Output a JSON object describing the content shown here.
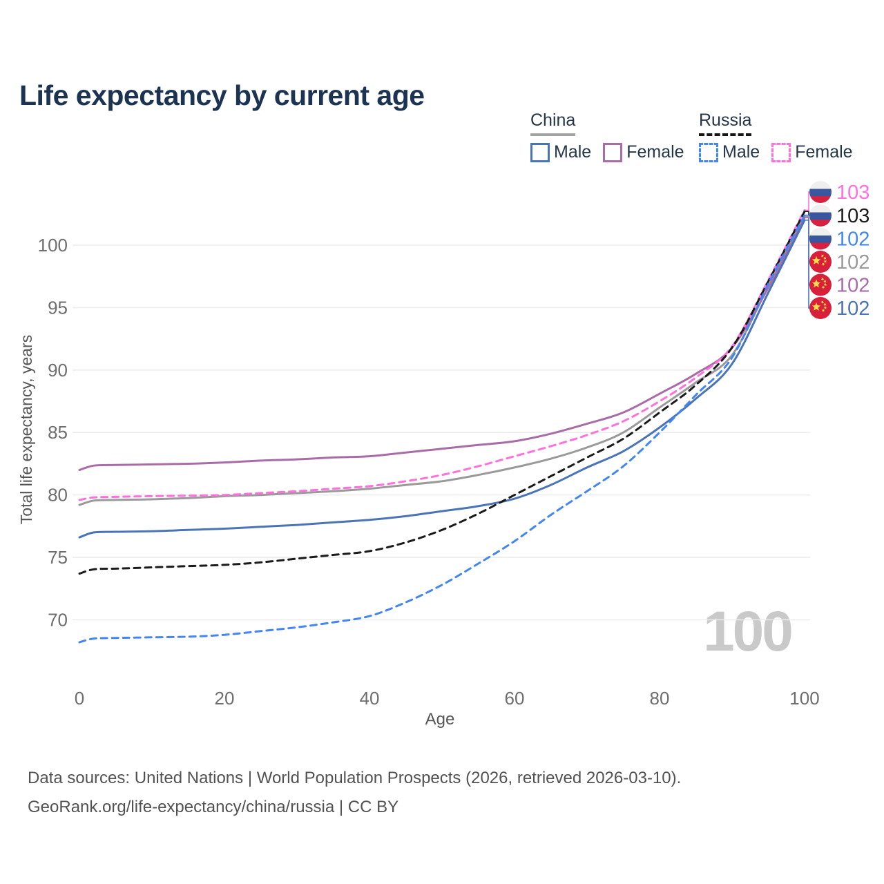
{
  "title": "Life expectancy by current age",
  "watermark": "100",
  "legend": {
    "china": {
      "label": "China",
      "line_style": "solid",
      "line_color": "#a3a3a3",
      "male_label": "Male",
      "male_color": "#4a74b8",
      "female_label": "Female",
      "female_color": "#a96ca9"
    },
    "russia": {
      "label": "Russia",
      "line_style": "dashed",
      "line_color": "#161616",
      "male_label": "Male",
      "male_color": "#4286f5",
      "female_label": "Female",
      "female_color": "#ff70dd"
    }
  },
  "chart_data": {
    "type": "line",
    "title": "Life expectancy by current age",
    "xlabel": "Age",
    "ylabel": "Total life expectancy, years",
    "x_ticks": [
      0,
      20,
      40,
      60,
      80,
      100
    ],
    "y_ticks": [
      70,
      75,
      80,
      85,
      90,
      95,
      100
    ],
    "xlim": [
      0,
      100
    ],
    "ylim": [
      70,
      100
    ],
    "grid": "horizontal",
    "legend_position": "top-right",
    "x": [
      0,
      2,
      5,
      10,
      15,
      20,
      25,
      30,
      35,
      40,
      45,
      50,
      55,
      60,
      65,
      70,
      75,
      80,
      85,
      90,
      95,
      100
    ],
    "series": [
      {
        "key": "china-total",
        "name": "China",
        "country": "China",
        "sex": "both",
        "color": "#9a9a9a",
        "dash": "solid",
        "values": [
          79.2,
          79.55,
          79.6,
          79.65,
          79.75,
          79.9,
          80.0,
          80.15,
          80.3,
          80.5,
          80.8,
          81.1,
          81.6,
          82.2,
          82.9,
          83.8,
          85.0,
          87.0,
          89.0,
          91.2,
          96.7,
          102.3
        ]
      },
      {
        "key": "china-female",
        "name": "China Female",
        "country": "China",
        "sex": "female",
        "color": "#a96ca9",
        "dash": "solid",
        "values": [
          82.0,
          82.35,
          82.4,
          82.45,
          82.5,
          82.6,
          82.75,
          82.85,
          83.0,
          83.1,
          83.4,
          83.7,
          84.0,
          84.3,
          84.9,
          85.7,
          86.6,
          88.1,
          89.7,
          91.8,
          96.6,
          102.2
        ]
      },
      {
        "key": "china-male",
        "name": "China Male",
        "country": "China",
        "sex": "male",
        "color": "#4a74b8",
        "dash": "solid",
        "values": [
          76.6,
          77.0,
          77.05,
          77.1,
          77.2,
          77.3,
          77.45,
          77.6,
          77.8,
          78.0,
          78.3,
          78.7,
          79.1,
          79.7,
          80.8,
          82.2,
          83.5,
          85.4,
          87.7,
          90.5,
          96.2,
          102.0
        ]
      },
      {
        "key": "russia-female",
        "name": "Russia Female",
        "country": "Russia",
        "sex": "female",
        "color": "#ff70dd",
        "dash": "dashed",
        "values": [
          79.6,
          79.8,
          79.85,
          79.9,
          79.95,
          80.0,
          80.15,
          80.3,
          80.5,
          80.7,
          81.1,
          81.6,
          82.3,
          83.1,
          83.9,
          84.8,
          85.9,
          87.5,
          89.4,
          91.9,
          97.2,
          102.8
        ]
      },
      {
        "key": "russia-total",
        "name": "Russia",
        "country": "Russia",
        "sex": "both",
        "color": "#1a1a1a",
        "dash": "dashed",
        "values": [
          73.7,
          74.05,
          74.1,
          74.2,
          74.3,
          74.4,
          74.6,
          74.9,
          75.2,
          75.5,
          76.2,
          77.2,
          78.5,
          80.0,
          81.5,
          83.0,
          84.5,
          86.6,
          88.8,
          91.8,
          97.1,
          102.7
        ]
      },
      {
        "key": "russia-male",
        "name": "Russia Male",
        "country": "Russia",
        "sex": "male",
        "color": "#4286f5",
        "dash": "dashed",
        "values": [
          68.2,
          68.5,
          68.55,
          68.6,
          68.65,
          68.8,
          69.1,
          69.4,
          69.8,
          70.3,
          71.4,
          72.8,
          74.5,
          76.3,
          78.4,
          80.3,
          82.3,
          85.0,
          88.0,
          91.0,
          96.9,
          102.4
        ]
      }
    ],
    "end_labels": [
      {
        "series_key": "russia-female",
        "flag": "russia",
        "text": "103",
        "color": "#ff70dd"
      },
      {
        "series_key": "russia-total",
        "flag": "russia",
        "text": "103",
        "color": "#1a1a1a"
      },
      {
        "series_key": "russia-male",
        "flag": "russia",
        "text": "102",
        "color": "#4286f5"
      },
      {
        "series_key": "china-total",
        "flag": "china",
        "text": "102",
        "color": "#9a9a9a"
      },
      {
        "series_key": "china-female",
        "flag": "china",
        "text": "102",
        "color": "#a96ca9"
      },
      {
        "series_key": "china-male",
        "flag": "china",
        "text": "102",
        "color": "#4a74b8"
      }
    ]
  },
  "footer": {
    "line1": "Data sources: United Nations | World Population Prospects (2026, retrieved 2026-03-10).",
    "line2": "GeoRank.org/life-expectancy/china/russia | CC BY"
  }
}
